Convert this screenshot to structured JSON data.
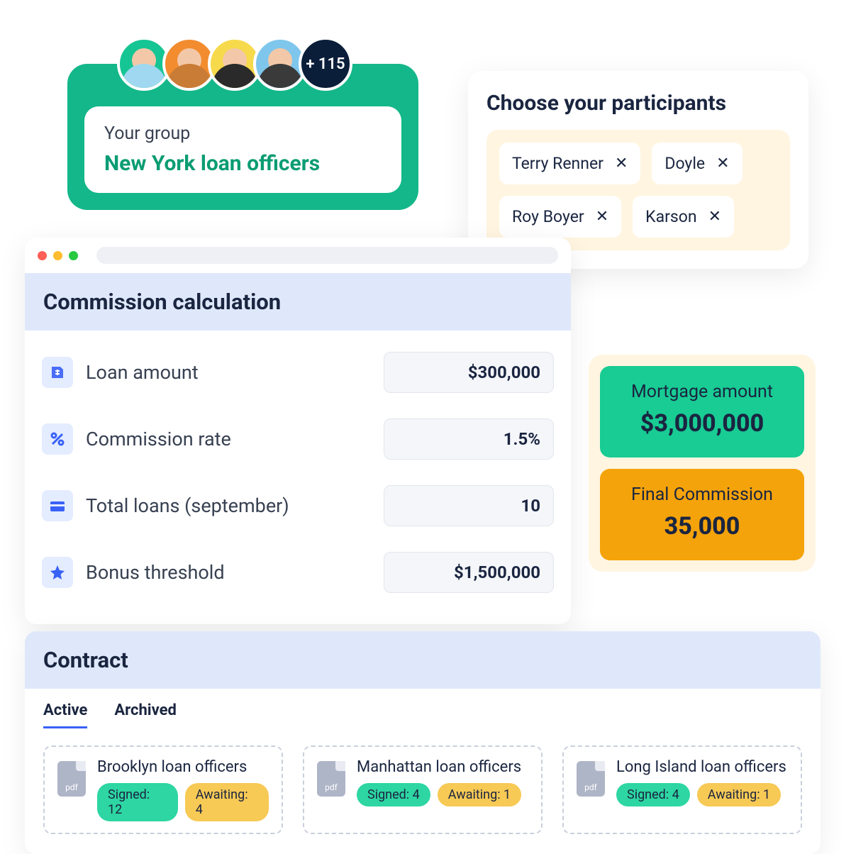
{
  "colors": {
    "green_primary": "#14b789",
    "green_text": "#0a9c73",
    "green_card": "#18cc94",
    "orange_card": "#f5a30a",
    "cream_bg": "#fff5e1",
    "header_blue": "#dfe8fb",
    "icon_bg": "#e4ecff",
    "icon_blue": "#3861f6",
    "text_dark": "#1a2540",
    "text_mid": "#384152",
    "badge_signed": "#2dd6a2",
    "badge_awaiting": "#f7c955",
    "pdf_gray": "#aeb5c7",
    "avatar_more_bg": "#0a1e3a"
  },
  "group": {
    "label": "Your group",
    "name": "New York loan officers",
    "more_count": "+ 115",
    "avatars": [
      {
        "bg": "#16c594",
        "shirt": "#9fd8f0"
      },
      {
        "bg": "#f28c2e",
        "shirt": "#c97c36"
      },
      {
        "bg": "#f7d94c",
        "shirt": "#2a2a2a"
      },
      {
        "bg": "#7fc6ec",
        "shirt": "#3a3a3a"
      }
    ]
  },
  "participants": {
    "title": "Choose your participants",
    "chips": [
      "Terry Renner",
      "Doyle",
      "Roy Boyer",
      "Karson"
    ]
  },
  "commission": {
    "title": "Commission calculation",
    "rows": [
      {
        "icon": "money",
        "label": "Loan amount",
        "value": "$300,000"
      },
      {
        "icon": "percent",
        "label": "Commission rate",
        "value": "1.5%"
      },
      {
        "icon": "card",
        "label": "Total loans (september)",
        "value": "10"
      },
      {
        "icon": "star",
        "label": "Bonus threshold",
        "value": "$1,500,000"
      }
    ]
  },
  "results": {
    "mortgage": {
      "label": "Mortgage amount",
      "value": "$3,000,000"
    },
    "final": {
      "label": "Final Commission",
      "value": "35,000"
    }
  },
  "contract": {
    "title": "Contract",
    "tabs": {
      "active": "Active",
      "archived": "Archived"
    },
    "pdf_label": "pdf",
    "items": [
      {
        "name": "Brooklyn loan officers",
        "signed": "Signed: 12",
        "awaiting": "Awaiting: 4"
      },
      {
        "name": "Manhattan loan officers",
        "signed": "Signed: 4",
        "awaiting": "Awaiting: 1"
      },
      {
        "name": "Long Island loan officers",
        "signed": "Signed: 4",
        "awaiting": "Awaiting: 1"
      }
    ]
  }
}
